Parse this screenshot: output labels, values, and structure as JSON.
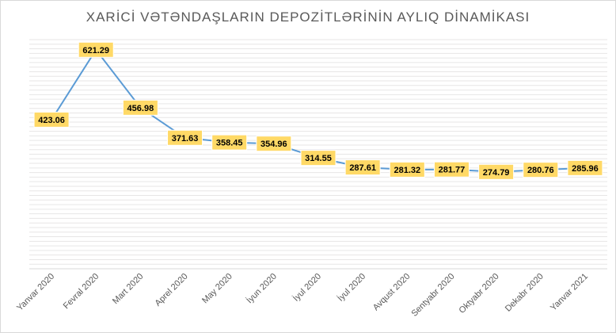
{
  "chart_data": {
    "type": "line",
    "title": "XARİCİ VƏTƏNDAŞLARIN DEPOZİTLƏRİNİN AYLIQ DİNAMİKASI",
    "categories": [
      "Yanvar 2020",
      "Fevral 2020",
      "Mart 2020",
      "Aprel 2020",
      "May 2020",
      "İyun 2020",
      "İyul 2020",
      "İyul 2020",
      "Avqust 2020",
      "Sentyabr 2020",
      "Oktyabr 2020",
      "Dekabr 2020",
      "Yanvar 2021"
    ],
    "values": [
      423.06,
      621.29,
      456.98,
      371.63,
      358.45,
      354.96,
      314.55,
      287.61,
      281.32,
      281.77,
      274.79,
      280.76,
      285.96
    ],
    "data_labels": [
      "423.06",
      "621.29",
      "456.98",
      "371.63",
      "358.45",
      "354.96",
      "314.55",
      "287.61",
      "281.32",
      "281.77",
      "274.79",
      "280.76",
      "285.96"
    ],
    "ylim": [
      0,
      650
    ],
    "grid": true,
    "legend": "none",
    "colors": {
      "line": "#5b9bd5",
      "label_fill": "#ffd966",
      "grid": "#e7e6e6",
      "axis": "#d9d9d9"
    }
  }
}
